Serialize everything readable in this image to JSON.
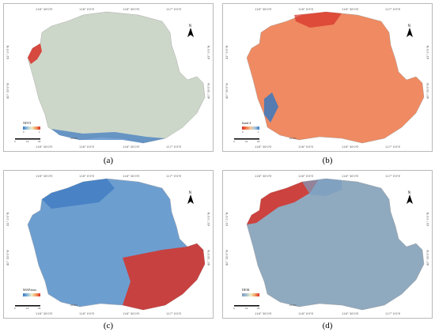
{
  "panels": [
    {
      "id": "a",
      "caption": "(a)",
      "legend_title": "NDVI",
      "legend_low": "0",
      "legend_high": "1",
      "scale_ticks": [
        "0",
        "10",
        "20"
      ],
      "scale_unit": "20 Mm",
      "ramp": [
        "#3a78c0",
        "#9cc8e0",
        "#eeeecc",
        "#f0a060",
        "#d73027"
      ],
      "base_color": "#cdd7c9",
      "north": "N"
    },
    {
      "id": "b",
      "caption": "(b)",
      "legend_title": "band 4",
      "legend_low": "0",
      "legend_high": "1",
      "scale_ticks": [
        "0",
        "10",
        "20"
      ],
      "scale_unit": "20 Mm",
      "ramp": [
        "#d73027",
        "#f08050",
        "#f6c9a0",
        "#a8c8e0",
        "#3a78c0"
      ],
      "base_color": "#ef8a62",
      "north": "N"
    },
    {
      "id": "c",
      "caption": "(c)",
      "legend_title": "MAP/mm",
      "legend_low": "",
      "legend_high": "",
      "scale_ticks": [
        "0",
        "10",
        "20"
      ],
      "scale_unit": "20 Mm",
      "ramp": [
        "#3a78c0",
        "#88b8dc",
        "#eeeec8",
        "#f4a060",
        "#d73027"
      ],
      "base_color": "#6d9ed0",
      "north": "N"
    },
    {
      "id": "d",
      "caption": "(d)",
      "legend_title": "DEM",
      "legend_low": "",
      "legend_high": "",
      "scale_ticks": [
        "0",
        "10",
        "20"
      ],
      "scale_unit": "20 Mm",
      "ramp": [
        "#7a9ec0",
        "#a8c0d0",
        "#f0f0c8",
        "#f4a060",
        "#d73027"
      ],
      "base_color": "#8fa9bf",
      "north": "N"
    }
  ],
  "graticule": {
    "top": [
      "116° 30'0\"E",
      "116° 0'0\"E",
      "116° 30'0\"E",
      "117° 0'0\"E"
    ],
    "bottom": [
      "116° 30'0\"E",
      "116° 0'0\"E",
      "116° 30'0\"E",
      "117° 0'0\"E"
    ],
    "left": [
      "41° 0'0\"N",
      "40° 30'0\"N",
      "40° 0'0\"N"
    ],
    "right": [
      "41° 0'0\"N",
      "40° 30'0\"N",
      "40° 0'0\"N"
    ]
  }
}
